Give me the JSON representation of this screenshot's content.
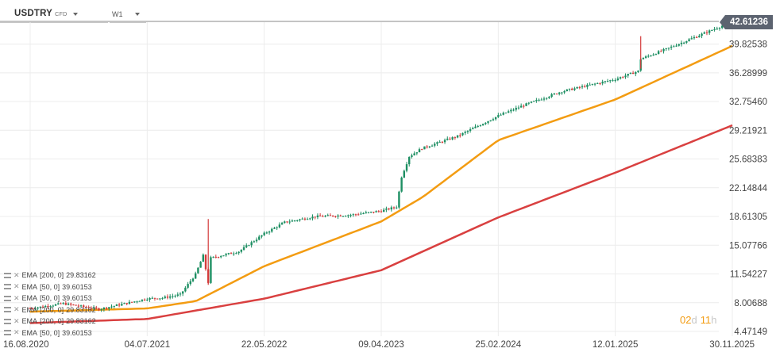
{
  "header": {
    "symbol": "USDTRY",
    "symbol_type": "CFD",
    "timeframe": "W1",
    "last_price": "42.61236"
  },
  "legend": [
    {
      "name": "EMA",
      "params": "[200, 0]",
      "value": "29.83162"
    },
    {
      "name": "EMA",
      "params": "[50, 0]",
      "value": "39.60153"
    },
    {
      "name": "EMA",
      "params": "[50, 0]",
      "value": "39.60153"
    },
    {
      "name": "EMA",
      "params": "[200, 0]",
      "value": "29.83162"
    },
    {
      "name": "EMA",
      "params": "[200, 0]",
      "value": "29.83162"
    },
    {
      "name": "EMA",
      "params": "[50, 0]",
      "value": "39.60153"
    }
  ],
  "countdown": {
    "days": "02",
    "days_unit": "d",
    "hours": "11",
    "hours_unit": "h"
  },
  "colors": {
    "candle_up": "#1e8f63",
    "candle_down": "#d43a3a",
    "ema50": "#f39c12",
    "ema200": "#d94040",
    "grid": "#ececec",
    "price_tag": "#5c6370"
  },
  "chart_data": {
    "type": "candlestick",
    "y_ticks": [
      "42.61236",
      "39.82538",
      "36.28999",
      "32.75460",
      "29.21921",
      "25.68383",
      "22.14844",
      "18.61305",
      "15.07766",
      "11.54227",
      "8.00688",
      "4.47149"
    ],
    "x_ticks": [
      "16.08.2020",
      "04.07.2021",
      "22.05.2022",
      "09.04.2023",
      "25.02.2024",
      "12.01.2025",
      "30.11.2025"
    ],
    "ylim": [
      4.47149,
      42.61236
    ],
    "close_series": [
      [
        "16.08.2020",
        7.3
      ],
      [
        "15.11.2020",
        7.9
      ],
      [
        "21.02.2021",
        7.2
      ],
      [
        "04.07.2021",
        8.5
      ],
      [
        "15.08.2021",
        8.6
      ],
      [
        "03.10.2021",
        9.0
      ],
      [
        "14.11.2021",
        11.5
      ],
      [
        "05.12.2021",
        13.8
      ],
      [
        "19.12.2021",
        10.5
      ],
      [
        "26.12.2021",
        13.5
      ],
      [
        "13.03.2022",
        14.3
      ],
      [
        "22.05.2022",
        16.5
      ],
      [
        "17.07.2022",
        17.9
      ],
      [
        "09.10.2022",
        18.6
      ],
      [
        "15.01.2023",
        18.8
      ],
      [
        "09.04.2023",
        19.3
      ],
      [
        "21.05.2023",
        19.8
      ],
      [
        "04.06.2023",
        23.5
      ],
      [
        "25.06.2023",
        26.0
      ],
      [
        "30.07.2023",
        27.0
      ],
      [
        "05.11.2023",
        28.5
      ],
      [
        "25.02.2024",
        31.0
      ],
      [
        "05.05.2024",
        32.3
      ],
      [
        "18.08.2024",
        34.0
      ],
      [
        "12.01.2025",
        35.5
      ],
      [
        "16.03.2025",
        36.5
      ],
      [
        "23.03.2025",
        38.0
      ],
      [
        "01.06.2025",
        39.2
      ],
      [
        "30.11.2025",
        42.6
      ]
    ],
    "series": [
      {
        "name": "EMA [50, 0]",
        "color": "#f39c12",
        "values": [
          [
            "16.08.2020",
            6.9
          ],
          [
            "04.07.2021",
            7.3
          ],
          [
            "15.11.2021",
            8.2
          ],
          [
            "22.05.2022",
            12.5
          ],
          [
            "09.04.2023",
            18.0
          ],
          [
            "01.08.2023",
            21.0
          ],
          [
            "25.02.2024",
            28.0
          ],
          [
            "12.01.2025",
            33.0
          ],
          [
            "30.11.2025",
            39.6
          ]
        ]
      },
      {
        "name": "EMA [200, 0]",
        "color": "#d94040",
        "values": [
          [
            "16.08.2020",
            5.5
          ],
          [
            "04.07.2021",
            6.0
          ],
          [
            "22.05.2022",
            8.5
          ],
          [
            "09.04.2023",
            12.0
          ],
          [
            "25.02.2024",
            18.5
          ],
          [
            "12.01.2025",
            24.0
          ],
          [
            "30.11.2025",
            29.83
          ]
        ]
      }
    ],
    "grid": true,
    "legend_position": "bottom-left"
  }
}
